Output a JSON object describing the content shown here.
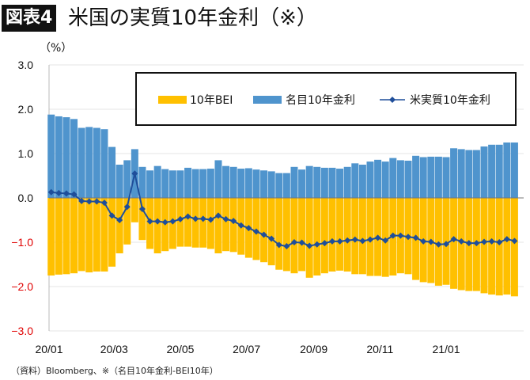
{
  "header": {
    "badge": "図表4",
    "title": "米国の実質10年金利（※）"
  },
  "footnote": "（資料）Bloomberg、※（名目10年金利-BEI10年）",
  "chart_data": {
    "type": "bar",
    "title": "米国の実質10年金利（※）",
    "ylabel": "（%）",
    "ylim": [
      -3.0,
      3.0
    ],
    "yticks": [
      "3.0",
      "2.0",
      "1.0",
      "0.0",
      "−1.0",
      "−2.0",
      "−3.0"
    ],
    "ytick_values": [
      3,
      2,
      1,
      0,
      -1,
      -2,
      -3
    ],
    "xticks": [
      "20/01",
      "20/03",
      "20/05",
      "20/07",
      "20/09",
      "20/11",
      "21/01"
    ],
    "xtick_dates": [
      "2020-01-01",
      "2020-03-01",
      "2020-05-01",
      "2020-07-01",
      "2020-09-01",
      "2020-11-01",
      "2021-01-01"
    ],
    "grid": true,
    "legend_placement": "top",
    "colors": {
      "bei": "#FFC000",
      "nominal": "#4F94CD",
      "real": "#1F4E9A",
      "negative_tick": "#E00000"
    },
    "legend": [
      "10年BEI",
      "名目10年金利",
      "米実質10年金利"
    ],
    "x": [
      "2020-01-03",
      "2020-01-10",
      "2020-01-17",
      "2020-01-24",
      "2020-01-31",
      "2020-02-07",
      "2020-02-14",
      "2020-02-21",
      "2020-02-28",
      "2020-03-06",
      "2020-03-13",
      "2020-03-20",
      "2020-03-27",
      "2020-04-03",
      "2020-04-10",
      "2020-04-17",
      "2020-04-24",
      "2020-05-01",
      "2020-05-08",
      "2020-05-15",
      "2020-05-22",
      "2020-05-29",
      "2020-06-05",
      "2020-06-12",
      "2020-06-19",
      "2020-06-26",
      "2020-07-03",
      "2020-07-10",
      "2020-07-17",
      "2020-07-24",
      "2020-07-31",
      "2020-08-07",
      "2020-08-14",
      "2020-08-21",
      "2020-08-28",
      "2020-09-04",
      "2020-09-11",
      "2020-09-18",
      "2020-09-25",
      "2020-10-02",
      "2020-10-09",
      "2020-10-16",
      "2020-10-23",
      "2020-10-30",
      "2020-11-06",
      "2020-11-13",
      "2020-11-20",
      "2020-11-27",
      "2020-12-04",
      "2020-12-11",
      "2020-12-18",
      "2020-12-25",
      "2021-01-01",
      "2021-01-08",
      "2021-01-15",
      "2021-01-22",
      "2021-01-29",
      "2021-02-05",
      "2021-02-12",
      "2021-02-19",
      "2021-02-26",
      "2021-03-05"
    ],
    "series": [
      {
        "name": "10年BEI",
        "kind": "bar",
        "values": [
          -1.75,
          -1.73,
          -1.72,
          -1.7,
          -1.65,
          -1.68,
          -1.66,
          -1.66,
          -1.55,
          -1.25,
          -1.05,
          -0.55,
          -0.95,
          -1.15,
          -1.25,
          -1.2,
          -1.15,
          -1.1,
          -1.1,
          -1.12,
          -1.12,
          -1.15,
          -1.25,
          -1.2,
          -1.22,
          -1.28,
          -1.35,
          -1.4,
          -1.45,
          -1.52,
          -1.62,
          -1.65,
          -1.7,
          -1.65,
          -1.8,
          -1.75,
          -1.7,
          -1.66,
          -1.64,
          -1.66,
          -1.72,
          -1.72,
          -1.76,
          -1.76,
          -1.78,
          -1.75,
          -1.7,
          -1.72,
          -1.85,
          -1.9,
          -1.92,
          -1.98,
          -1.96,
          -2.05,
          -2.08,
          -2.1,
          -2.1,
          -2.15,
          -2.18,
          -2.2,
          -2.18,
          -2.22
        ]
      },
      {
        "name": "名目10年金利",
        "kind": "bar",
        "values": [
          1.88,
          1.84,
          1.82,
          1.78,
          1.58,
          1.6,
          1.58,
          1.55,
          1.15,
          0.75,
          0.85,
          1.1,
          0.7,
          0.62,
          0.72,
          0.65,
          0.62,
          0.62,
          0.68,
          0.65,
          0.65,
          0.66,
          0.85,
          0.72,
          0.7,
          0.66,
          0.67,
          0.64,
          0.62,
          0.6,
          0.56,
          0.56,
          0.7,
          0.64,
          0.72,
          0.7,
          0.68,
          0.68,
          0.66,
          0.7,
          0.78,
          0.75,
          0.82,
          0.86,
          0.82,
          0.9,
          0.85,
          0.84,
          0.95,
          0.92,
          0.93,
          0.93,
          0.92,
          1.12,
          1.1,
          1.08,
          1.08,
          1.16,
          1.2,
          1.2,
          1.25,
          1.25
        ]
      },
      {
        "name": "米実質10年金利",
        "kind": "line",
        "values": [
          0.13,
          0.11,
          0.1,
          0.08,
          -0.07,
          -0.08,
          -0.08,
          -0.11,
          -0.4,
          -0.5,
          -0.2,
          0.55,
          -0.25,
          -0.53,
          -0.53,
          -0.55,
          -0.53,
          -0.48,
          -0.42,
          -0.47,
          -0.47,
          -0.49,
          -0.4,
          -0.48,
          -0.52,
          -0.62,
          -0.68,
          -0.76,
          -0.83,
          -0.92,
          -1.06,
          -1.09,
          -1.0,
          -1.01,
          -1.08,
          -1.05,
          -1.02,
          -0.98,
          -0.98,
          -0.96,
          -0.94,
          -0.97,
          -0.94,
          -0.9,
          -0.96,
          -0.85,
          -0.85,
          -0.88,
          -0.9,
          -0.98,
          -0.99,
          -1.05,
          -1.04,
          -0.93,
          -0.98,
          -1.02,
          -1.02,
          -0.99,
          -0.98,
          -1.0,
          -0.93,
          -0.97
        ]
      }
    ]
  }
}
